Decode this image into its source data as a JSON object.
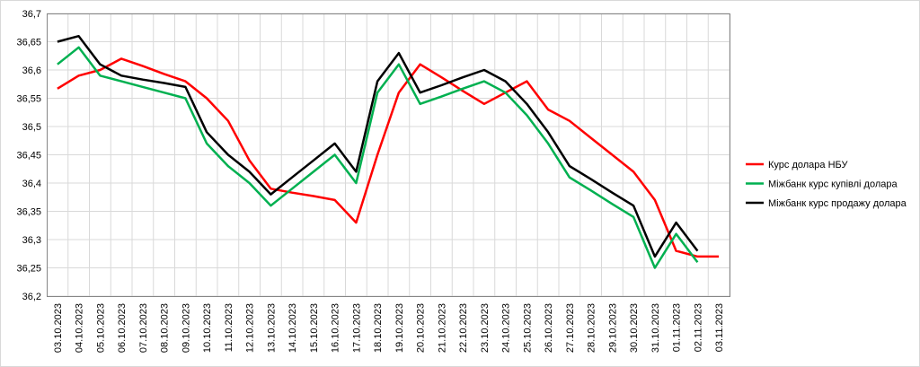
{
  "chart_data": {
    "type": "line",
    "categories": [
      "03.10.2023",
      "04.10.2023",
      "05.10.2023",
      "06.10.2023",
      "07.10.2023",
      "08.10.2023",
      "09.10.2023",
      "10.10.2023",
      "11.10.2023",
      "12.10.2023",
      "13.10.2023",
      "14.10.2023",
      "15.10.2023",
      "16.10.2023",
      "17.10.2023",
      "18.10.2023",
      "19.10.2023",
      "20.10.2023",
      "21.10.2023",
      "22.10.2023",
      "23.10.2023",
      "24.10.2023",
      "25.10.2023",
      "26.10.2023",
      "27.10.2023",
      "28.10.2023",
      "29.10.2023",
      "30.10.2023",
      "31.10.2023",
      "01.11.2023",
      "02.11.2023",
      "03.11.2023"
    ],
    "series": [
      {
        "name": "Курс долара НБУ",
        "color": "#ff0000",
        "values": [
          36.567,
          36.59,
          36.6,
          36.62,
          36.607,
          36.593,
          36.58,
          36.55,
          36.51,
          36.44,
          36.39,
          36.383,
          36.377,
          36.37,
          36.33,
          36.45,
          36.56,
          36.61,
          36.587,
          36.563,
          36.54,
          36.56,
          36.58,
          36.53,
          36.51,
          36.48,
          36.45,
          36.42,
          36.37,
          36.28,
          36.27,
          36.27
        ]
      },
      {
        "name": "Міжбанк курс купівлі долара",
        "color": "#00b050",
        "values": [
          36.61,
          36.64,
          36.59,
          36.58,
          36.57,
          36.56,
          36.55,
          36.47,
          36.43,
          36.4,
          36.36,
          36.39,
          36.42,
          36.45,
          36.4,
          36.56,
          36.61,
          36.54,
          36.553,
          36.567,
          36.58,
          36.56,
          36.52,
          36.47,
          36.41,
          36.387,
          36.363,
          36.34,
          36.25,
          36.31,
          36.26,
          null
        ]
      },
      {
        "name": "Міжбанк курс продажу долара",
        "color": "#000000",
        "values": [
          36.65,
          36.66,
          36.61,
          36.59,
          36.583,
          36.577,
          36.57,
          36.49,
          36.45,
          36.42,
          36.38,
          36.41,
          36.44,
          36.47,
          36.42,
          36.58,
          36.63,
          36.56,
          36.573,
          36.587,
          36.6,
          36.58,
          36.54,
          36.49,
          36.43,
          36.407,
          36.383,
          36.36,
          36.27,
          36.33,
          36.28,
          null
        ]
      }
    ],
    "ylim": [
      36.2,
      36.7
    ],
    "yticks": [
      {
        "value": 36.2,
        "label": "36,2"
      },
      {
        "value": 36.25,
        "label": "36,25"
      },
      {
        "value": 36.3,
        "label": "36,3"
      },
      {
        "value": 36.35,
        "label": "36,35"
      },
      {
        "value": 36.4,
        "label": "36,4"
      },
      {
        "value": 36.45,
        "label": "36,45"
      },
      {
        "value": 36.5,
        "label": "36,5"
      },
      {
        "value": 36.55,
        "label": "36,55"
      },
      {
        "value": 36.6,
        "label": "36,6"
      },
      {
        "value": 36.65,
        "label": "36,65"
      },
      {
        "value": 36.7,
        "label": "36,7"
      }
    ],
    "grid": true,
    "legend": "right"
  }
}
